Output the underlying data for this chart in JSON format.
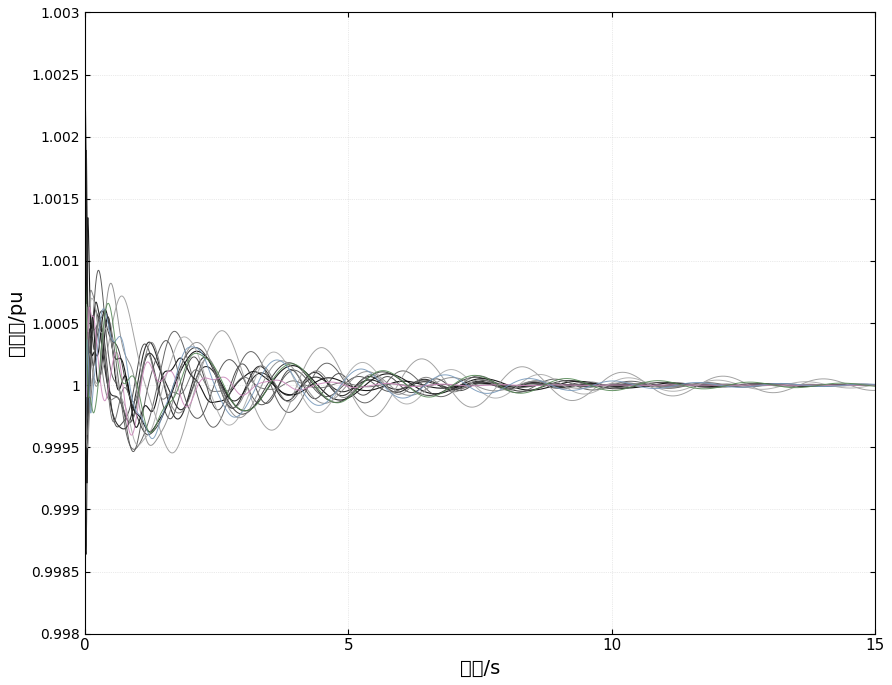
{
  "xlabel": "时间/s",
  "ylabel": "角速度/pu",
  "xlim": [
    0,
    15
  ],
  "ylim": [
    0.998,
    1.003
  ],
  "yticks": [
    0.998,
    0.9985,
    0.999,
    0.9995,
    1.0,
    1.0005,
    1.001,
    1.0015,
    1.002,
    1.0025,
    1.003
  ],
  "xticks": [
    0,
    5,
    10,
    15
  ],
  "background_color": "#ffffff",
  "linewidth": 0.7,
  "font_size": 14
}
